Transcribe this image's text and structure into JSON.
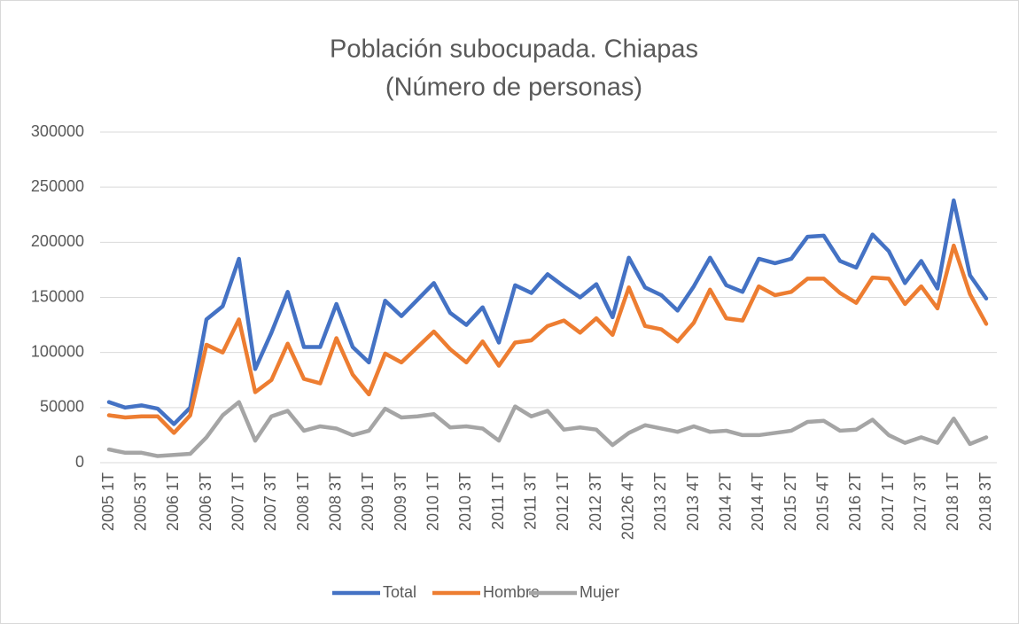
{
  "chart_data": {
    "type": "line",
    "title": "Población subocupada. Chiapas",
    "subtitle": "(Número de personas)",
    "categories": [
      "2005 1T",
      null,
      "2005 3T",
      null,
      "2006 1T",
      null,
      "2006 3T",
      null,
      "2007 1T",
      null,
      "2007 3T",
      null,
      "2008 1T",
      null,
      "2008 3T",
      null,
      "2009 1T",
      null,
      "2009 3T",
      null,
      "2010 1T",
      null,
      "2010 3T",
      null,
      "2011 1T",
      null,
      "2011 3T",
      null,
      "2012 1T",
      null,
      "2012 3T",
      null,
      "20126 4T",
      null,
      "2013 2T",
      null,
      "2013 4T",
      null,
      "2014 2T",
      null,
      "2014 4T",
      null,
      "2015 2T",
      null,
      "2015 4T",
      null,
      "2016 2T",
      null,
      "2017 1T",
      null,
      "2017 3T",
      null,
      "2018 1T",
      null,
      "2018 3T"
    ],
    "series": [
      {
        "name": "Total",
        "color": "#4472c4",
        "values": [
          55000,
          50000,
          52000,
          49000,
          35000,
          50000,
          130000,
          142000,
          185000,
          85000,
          118000,
          155000,
          105000,
          105000,
          144000,
          105000,
          91000,
          147000,
          133000,
          148000,
          163000,
          136000,
          125000,
          141000,
          109000,
          161000,
          154000,
          171000,
          160000,
          150000,
          162000,
          132000,
          186000,
          159000,
          152000,
          138000,
          160000,
          186000,
          161000,
          155000,
          185000,
          181000,
          185000,
          205000,
          206000,
          183000,
          177000,
          207000,
          192000,
          163000,
          183000,
          158000,
          238000,
          170000,
          149000
        ]
      },
      {
        "name": "Hombre",
        "color": "#ed7d31",
        "values": [
          43000,
          41000,
          42000,
          42000,
          27000,
          43000,
          107000,
          100000,
          130000,
          64000,
          75000,
          108000,
          76000,
          72000,
          113000,
          80000,
          62000,
          99000,
          91000,
          105000,
          119000,
          103000,
          91000,
          110000,
          88000,
          109000,
          111000,
          124000,
          129000,
          118000,
          131000,
          116000,
          159000,
          124000,
          121000,
          110000,
          127000,
          157000,
          131000,
          129000,
          160000,
          152000,
          155000,
          167000,
          167000,
          154000,
          145000,
          168000,
          167000,
          144000,
          160000,
          140000,
          197000,
          153000,
          126000
        ]
      },
      {
        "name": "Mujer",
        "color": "#a5a5a5",
        "values": [
          12000,
          9000,
          9000,
          6000,
          7000,
          8000,
          23000,
          43000,
          55000,
          20000,
          42000,
          47000,
          29000,
          33000,
          31000,
          25000,
          29000,
          49000,
          41000,
          42000,
          44000,
          32000,
          33000,
          31000,
          20000,
          51000,
          42000,
          47000,
          30000,
          32000,
          30000,
          16000,
          27000,
          34000,
          31000,
          28000,
          33000,
          28000,
          29000,
          25000,
          25000,
          27000,
          29000,
          37000,
          38000,
          29000,
          30000,
          39000,
          25000,
          18000,
          23000,
          18000,
          40000,
          17000,
          23000
        ]
      }
    ],
    "ylim": [
      0,
      300000
    ],
    "yticks": [
      0,
      50000,
      100000,
      150000,
      200000,
      250000,
      300000
    ],
    "grid": true,
    "legend": "bottom"
  }
}
